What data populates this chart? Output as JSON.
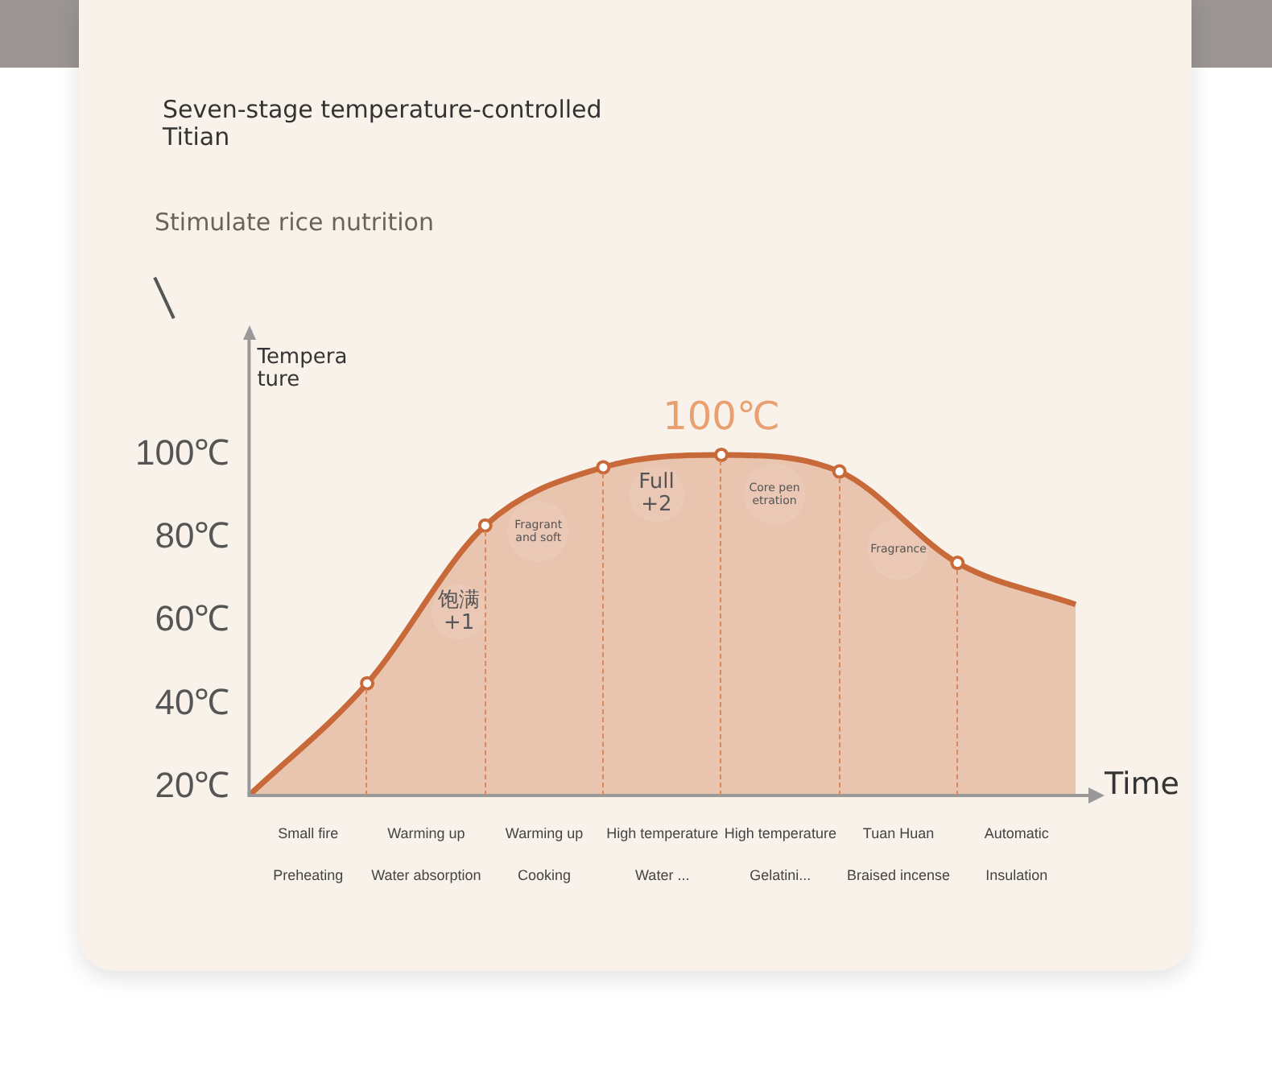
{
  "chart_data": {
    "type": "area",
    "title": "Seven-stage temperature-controlled\nTitian",
    "subtitle": "Stimulate rice nutrition",
    "xlabel": "Time",
    "ylabel": "Tempera\nture",
    "categories": [
      null,
      null,
      null,
      null,
      null,
      null,
      null,
      null
    ],
    "series": [
      {
        "color": "#c8693a",
        "values": [
          18,
          45,
          83,
          97,
          100,
          96,
          74,
          64
        ]
      }
    ],
    "ylim": [
      18,
      125
    ],
    "yticks": [
      {
        "value": 20,
        "label": "20℃"
      },
      {
        "value": 40,
        "label": "40℃"
      },
      {
        "value": 60,
        "label": "60℃"
      },
      {
        "value": 80,
        "label": "80℃"
      },
      {
        "value": 100,
        "label": "100℃"
      }
    ],
    "grid": "x",
    "marker": "circle",
    "annotations": [
      "100℃",
      "饱满\n+1",
      "Fragrant\nand soft",
      "Full\n+2",
      "Core pen\netration",
      "Fragrance",
      "Small fire\nPreheating",
      "Warming up\nWater absorption",
      "Warming up\nCooking",
      "High temperature\nWater ...",
      "High temperature\nGelatini...",
      "Tuan Huan\nBraised incense",
      "Automatic\nInsulation"
    ]
  }
}
